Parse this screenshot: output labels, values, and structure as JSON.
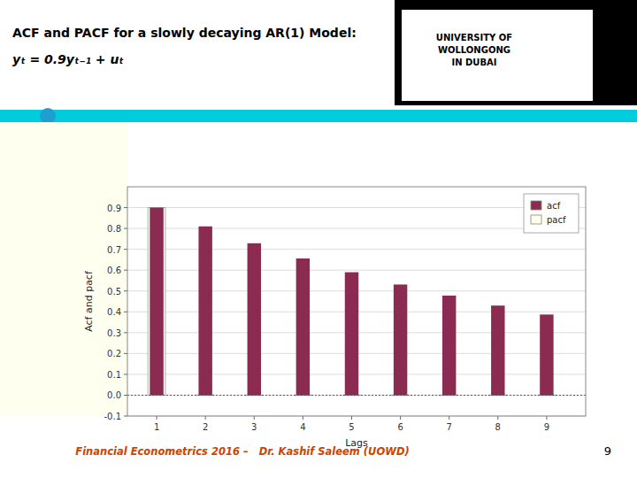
{
  "chart_data": {
    "type": "bar",
    "title": "ACF and PACF for a slowly decaying AR(1) Model:",
    "subtitle": "yₜ = 0.9yₜ₋₁ + uₜ",
    "x_label": "Lags",
    "y_label": "Acf and pacf",
    "x": [
      1,
      2,
      3,
      4,
      5,
      6,
      7,
      8,
      9
    ],
    "xlim": [
      0.4,
      9.8
    ],
    "xticks": [
      1,
      2,
      3,
      4,
      5,
      6,
      7,
      8,
      9
    ],
    "series": [
      {
        "name": "acf",
        "color": "#8B2B52",
        "values": [
          0.9,
          0.81,
          0.729,
          0.656,
          0.59,
          0.531,
          0.478,
          0.43,
          0.387
        ]
      },
      {
        "name": "pacf",
        "color": "#FFFFF0",
        "values": [
          0.9,
          0.001,
          0.001,
          0.001,
          0.001,
          0.001,
          0.001,
          0.001,
          0.001
        ]
      }
    ],
    "ylim": [
      -0.1,
      1.0
    ],
    "yticks": [
      -0.1,
      {
        "value": 0,
        "label": "0.0"
      },
      0.1,
      0.2,
      0.3,
      0.4,
      0.5,
      0.6,
      0.7,
      0.8,
      0.9
    ],
    "grid": true,
    "legend": "upper right",
    "annotations": [
      "UNIVERSITY OF\nWOLLONGONG\nIN DUBAI",
      "Financial Econometrics 2016 –   Dr. Kashif Saleem (UOWD)",
      "9"
    ]
  }
}
